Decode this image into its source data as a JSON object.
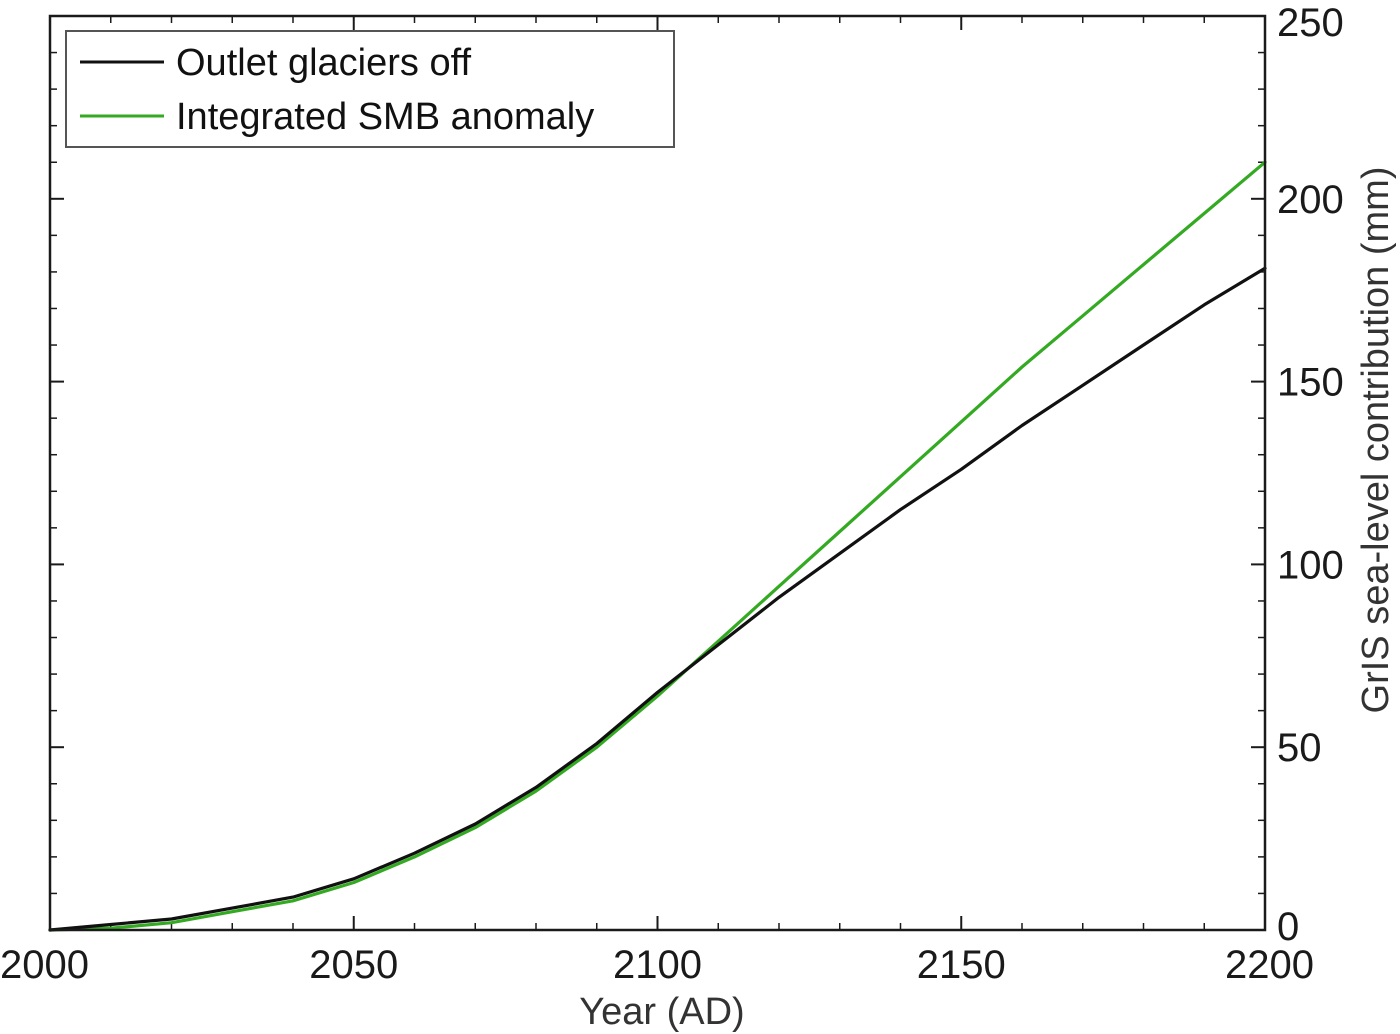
{
  "chart_data": {
    "type": "line",
    "xlabel": "Year (AD)",
    "ylabel": "GrIS sea-level contribution (mm)",
    "xlim": [
      2000,
      2200
    ],
    "ylim": [
      0,
      250
    ],
    "x_ticks": [
      2000,
      2050,
      2100,
      2150,
      2200
    ],
    "y_ticks": [
      0,
      50,
      100,
      150,
      200,
      250
    ],
    "y_axis_side": "right",
    "grid": false,
    "legend_placement": "top-left",
    "series": [
      {
        "name": "Outlet glaciers off",
        "color": "#111111",
        "x": [
          2000,
          2010,
          2020,
          2030,
          2040,
          2050,
          2060,
          2070,
          2080,
          2090,
          2100,
          2110,
          2120,
          2130,
          2140,
          2150,
          2160,
          2170,
          2180,
          2190,
          2200
        ],
        "values": [
          0,
          1.5,
          3,
          6,
          9,
          14,
          21,
          29,
          39,
          51,
          65,
          78,
          91,
          103,
          115,
          126,
          138,
          149,
          160,
          171,
          181
        ]
      },
      {
        "name": "Integrated SMB anomaly",
        "color": "#33aa22",
        "x": [
          2000,
          2010,
          2020,
          2030,
          2040,
          2050,
          2060,
          2070,
          2080,
          2090,
          2100,
          2110,
          2120,
          2130,
          2140,
          2150,
          2160,
          2170,
          2180,
          2190,
          2200
        ],
        "values": [
          0,
          0.5,
          2,
          5,
          8,
          13,
          20,
          28,
          38,
          50,
          64,
          79,
          94,
          109,
          124,
          139,
          154,
          168,
          182,
          196,
          210
        ]
      }
    ]
  }
}
